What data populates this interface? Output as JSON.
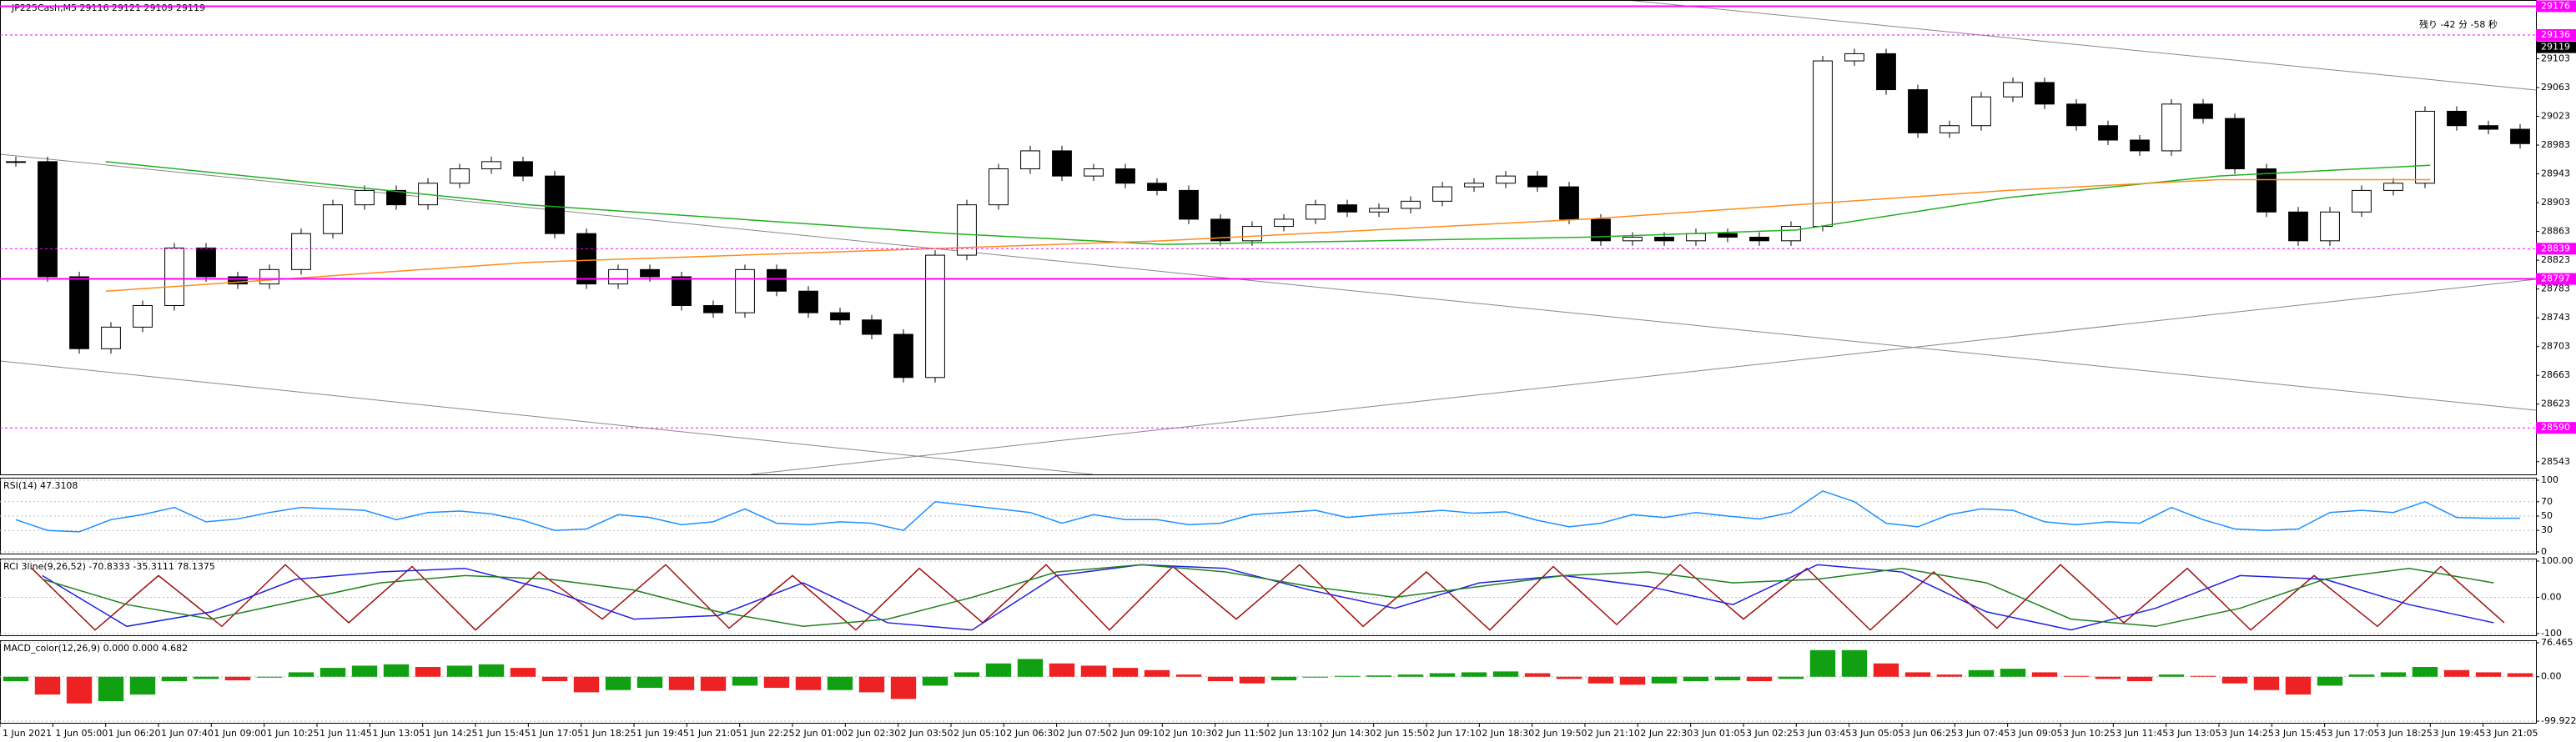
{
  "chart_data": [
    {
      "type": "candlestick",
      "title": "JP225Cash,M5  29116 29121 29109 29119",
      "countdown": "残り -42 分 -58 秒",
      "up_color": "#ffffff",
      "down_color": "#000000",
      "values": [
        28960,
        28800,
        28700,
        28730,
        28760,
        28840,
        28800,
        28790,
        28810,
        28860,
        28900,
        28920,
        28900,
        28930,
        28950,
        28960,
        28940,
        28860,
        28790,
        28810,
        28800,
        28760,
        28750,
        28810,
        28780,
        28750,
        28740,
        28720,
        28660,
        28830,
        28900,
        28950,
        28975,
        28940,
        28950,
        28930,
        28920,
        28880,
        28850,
        28870,
        28880,
        28900,
        28890,
        28895,
        28905,
        28925,
        28930,
        28940,
        28925,
        28880,
        28850,
        28855,
        28850,
        28860,
        28855,
        28850,
        28870,
        29100,
        29110,
        29060,
        29000,
        29010,
        29050,
        29070,
        29040,
        29010,
        28990,
        28975,
        29040,
        29020,
        28950,
        28890,
        28850,
        28890,
        28920,
        28930,
        29030,
        29010,
        29005,
        28985
      ],
      "series": [
        {
          "color": "#22b022",
          "values": [
            28960,
            28930,
            28900,
            28880,
            28860,
            28845,
            28850,
            28855,
            28865,
            28910,
            28940,
            28955
          ]
        },
        {
          "color": "#ff8c1a",
          "values": [
            28780,
            28800,
            28820,
            28830,
            28840,
            28850,
            28865,
            28880,
            28900,
            28920,
            28935,
            28935
          ]
        }
      ],
      "price_lines": [
        {
          "value": 29176,
          "style": "solid"
        },
        {
          "value": 29136,
          "style": "dashed"
        },
        {
          "value": 28839,
          "style": "dashed"
        },
        {
          "value": 28797,
          "style": "solid"
        },
        {
          "value": 28590,
          "style": "dashed"
        }
      ],
      "current_price": 29119,
      "ylim": [
        28530,
        29180
      ],
      "yticks": [
        29103,
        29063,
        29023,
        28983,
        28943,
        28903,
        28863,
        28823,
        28783,
        28743,
        28703,
        28663,
        28623,
        28543
      ]
    },
    {
      "type": "line",
      "title": "RSI(14) 47.3108",
      "ylim": [
        0,
        100
      ],
      "yticks": [
        100,
        70,
        50,
        30,
        0
      ],
      "series": [
        {
          "color": "#1e90ff",
          "values": [
            45,
            30,
            28,
            45,
            52,
            62,
            42,
            46,
            55,
            62,
            60,
            58,
            45,
            55,
            57,
            53,
            44,
            30,
            32,
            52,
            48,
            38,
            42,
            60,
            40,
            38,
            42,
            40,
            30,
            70,
            65,
            60,
            55,
            40,
            52,
            45,
            45,
            38,
            40,
            52,
            55,
            58,
            48,
            52,
            55,
            58,
            54,
            56,
            44,
            35,
            40,
            52,
            48,
            55,
            50,
            46,
            55,
            85,
            70,
            40,
            35,
            52,
            60,
            58,
            42,
            38,
            42,
            40,
            62,
            45,
            32,
            30,
            32,
            55,
            58,
            55,
            70,
            48,
            47,
            47
          ]
        }
      ]
    },
    {
      "type": "line",
      "title": "RCI 3line(9,26,52) -70.8333 -35.3111 78.1375",
      "ylim": [
        -100,
        100
      ],
      "yticks": [
        {
          "value": 100,
          "label": "100.00"
        },
        {
          "value": 0,
          "label": "0.00"
        },
        {
          "value": -100,
          "label": "-100"
        }
      ],
      "series": [
        {
          "color": "#a01010",
          "values": [
            80,
            -90,
            60,
            -80,
            90,
            -70,
            85,
            -90,
            70,
            -60,
            90,
            -85,
            60,
            -90,
            80,
            -70,
            90,
            -90,
            85,
            -60,
            90,
            -80,
            70,
            -90,
            85,
            -75,
            90,
            -60,
            80,
            -90,
            70,
            -85,
            90,
            -70,
            80,
            -90,
            60,
            -80,
            85,
            -70
          ]
        },
        {
          "color": "#2020e0",
          "values": [
            60,
            -80,
            -40,
            50,
            70,
            80,
            20,
            -60,
            -50,
            40,
            -70,
            -90,
            60,
            90,
            80,
            20,
            -30,
            40,
            60,
            30,
            -20,
            90,
            70,
            -40,
            -90,
            -30,
            60,
            50,
            -20,
            -70
          ]
        },
        {
          "color": "#208020",
          "values": [
            50,
            -20,
            -60,
            -10,
            40,
            60,
            50,
            20,
            -40,
            -80,
            -60,
            0,
            70,
            90,
            70,
            30,
            0,
            30,
            60,
            70,
            40,
            50,
            80,
            40,
            -60,
            -80,
            -30,
            50,
            80,
            40
          ]
        }
      ]
    },
    {
      "type": "bar",
      "title": "MACD_color(12,26,9) 0.000 0.000 4.682",
      "ylim": [
        -99.922,
        76.465
      ],
      "yticks": [
        76.465,
        {
          "value": 0,
          "label": "0.00"
        },
        -99.922
      ],
      "up_color": "#11a011",
      "down_color": "#ee2222",
      "values": [
        -10,
        -40,
        -60,
        -55,
        -40,
        -10,
        -5,
        -8,
        -2,
        10,
        20,
        25,
        28,
        22,
        25,
        28,
        20,
        -10,
        -35,
        -30,
        -25,
        -30,
        -32,
        -20,
        -25,
        -30,
        -30,
        -35,
        -50,
        -20,
        10,
        30,
        40,
        30,
        25,
        20,
        15,
        5,
        -10,
        -15,
        -8,
        0,
        2,
        3,
        5,
        8,
        10,
        12,
        8,
        -5,
        -15,
        -18,
        -15,
        -10,
        -8,
        -10,
        -5,
        60,
        60,
        30,
        10,
        5,
        15,
        18,
        10,
        2,
        -5,
        -10,
        5,
        2,
        -15,
        -30,
        -40,
        -20,
        5,
        10,
        22,
        15,
        10,
        8
      ]
    }
  ],
  "time_axis": [
    "1 Jun 2021",
    "1 Jun 05:00",
    "1 Jun 06:20",
    "1 Jun 07:40",
    "1 Jun 09:00",
    "1 Jun 10:25",
    "1 Jun 11:45",
    "1 Jun 13:05",
    "1 Jun 14:25",
    "1 Jun 15:45",
    "1 Jun 17:05",
    "1 Jun 18:25",
    "1 Jun 19:45",
    "1 Jun 21:05",
    "1 Jun 22:25",
    "2 Jun 01:00",
    "2 Jun 02:30",
    "2 Jun 03:50",
    "2 Jun 05:10",
    "2 Jun 06:30",
    "2 Jun 07:50",
    "2 Jun 09:10",
    "2 Jun 10:30",
    "2 Jun 11:50",
    "2 Jun 13:10",
    "2 Jun 14:30",
    "2 Jun 15:50",
    "2 Jun 17:10",
    "2 Jun 18:30",
    "2 Jun 19:50",
    "2 Jun 21:10",
    "2 Jun 22:30",
    "3 Jun 01:05",
    "3 Jun 02:25",
    "3 Jun 03:45",
    "3 Jun 05:05",
    "3 Jun 06:25",
    "3 Jun 07:45",
    "3 Jun 09:05",
    "3 Jun 10:25",
    "3 Jun 11:45",
    "3 Jun 13:05",
    "3 Jun 14:25",
    "3 Jun 15:45",
    "3 Jun 17:05",
    "3 Jun 18:25",
    "3 Jun 19:45",
    "3 Jun 21:05"
  ]
}
